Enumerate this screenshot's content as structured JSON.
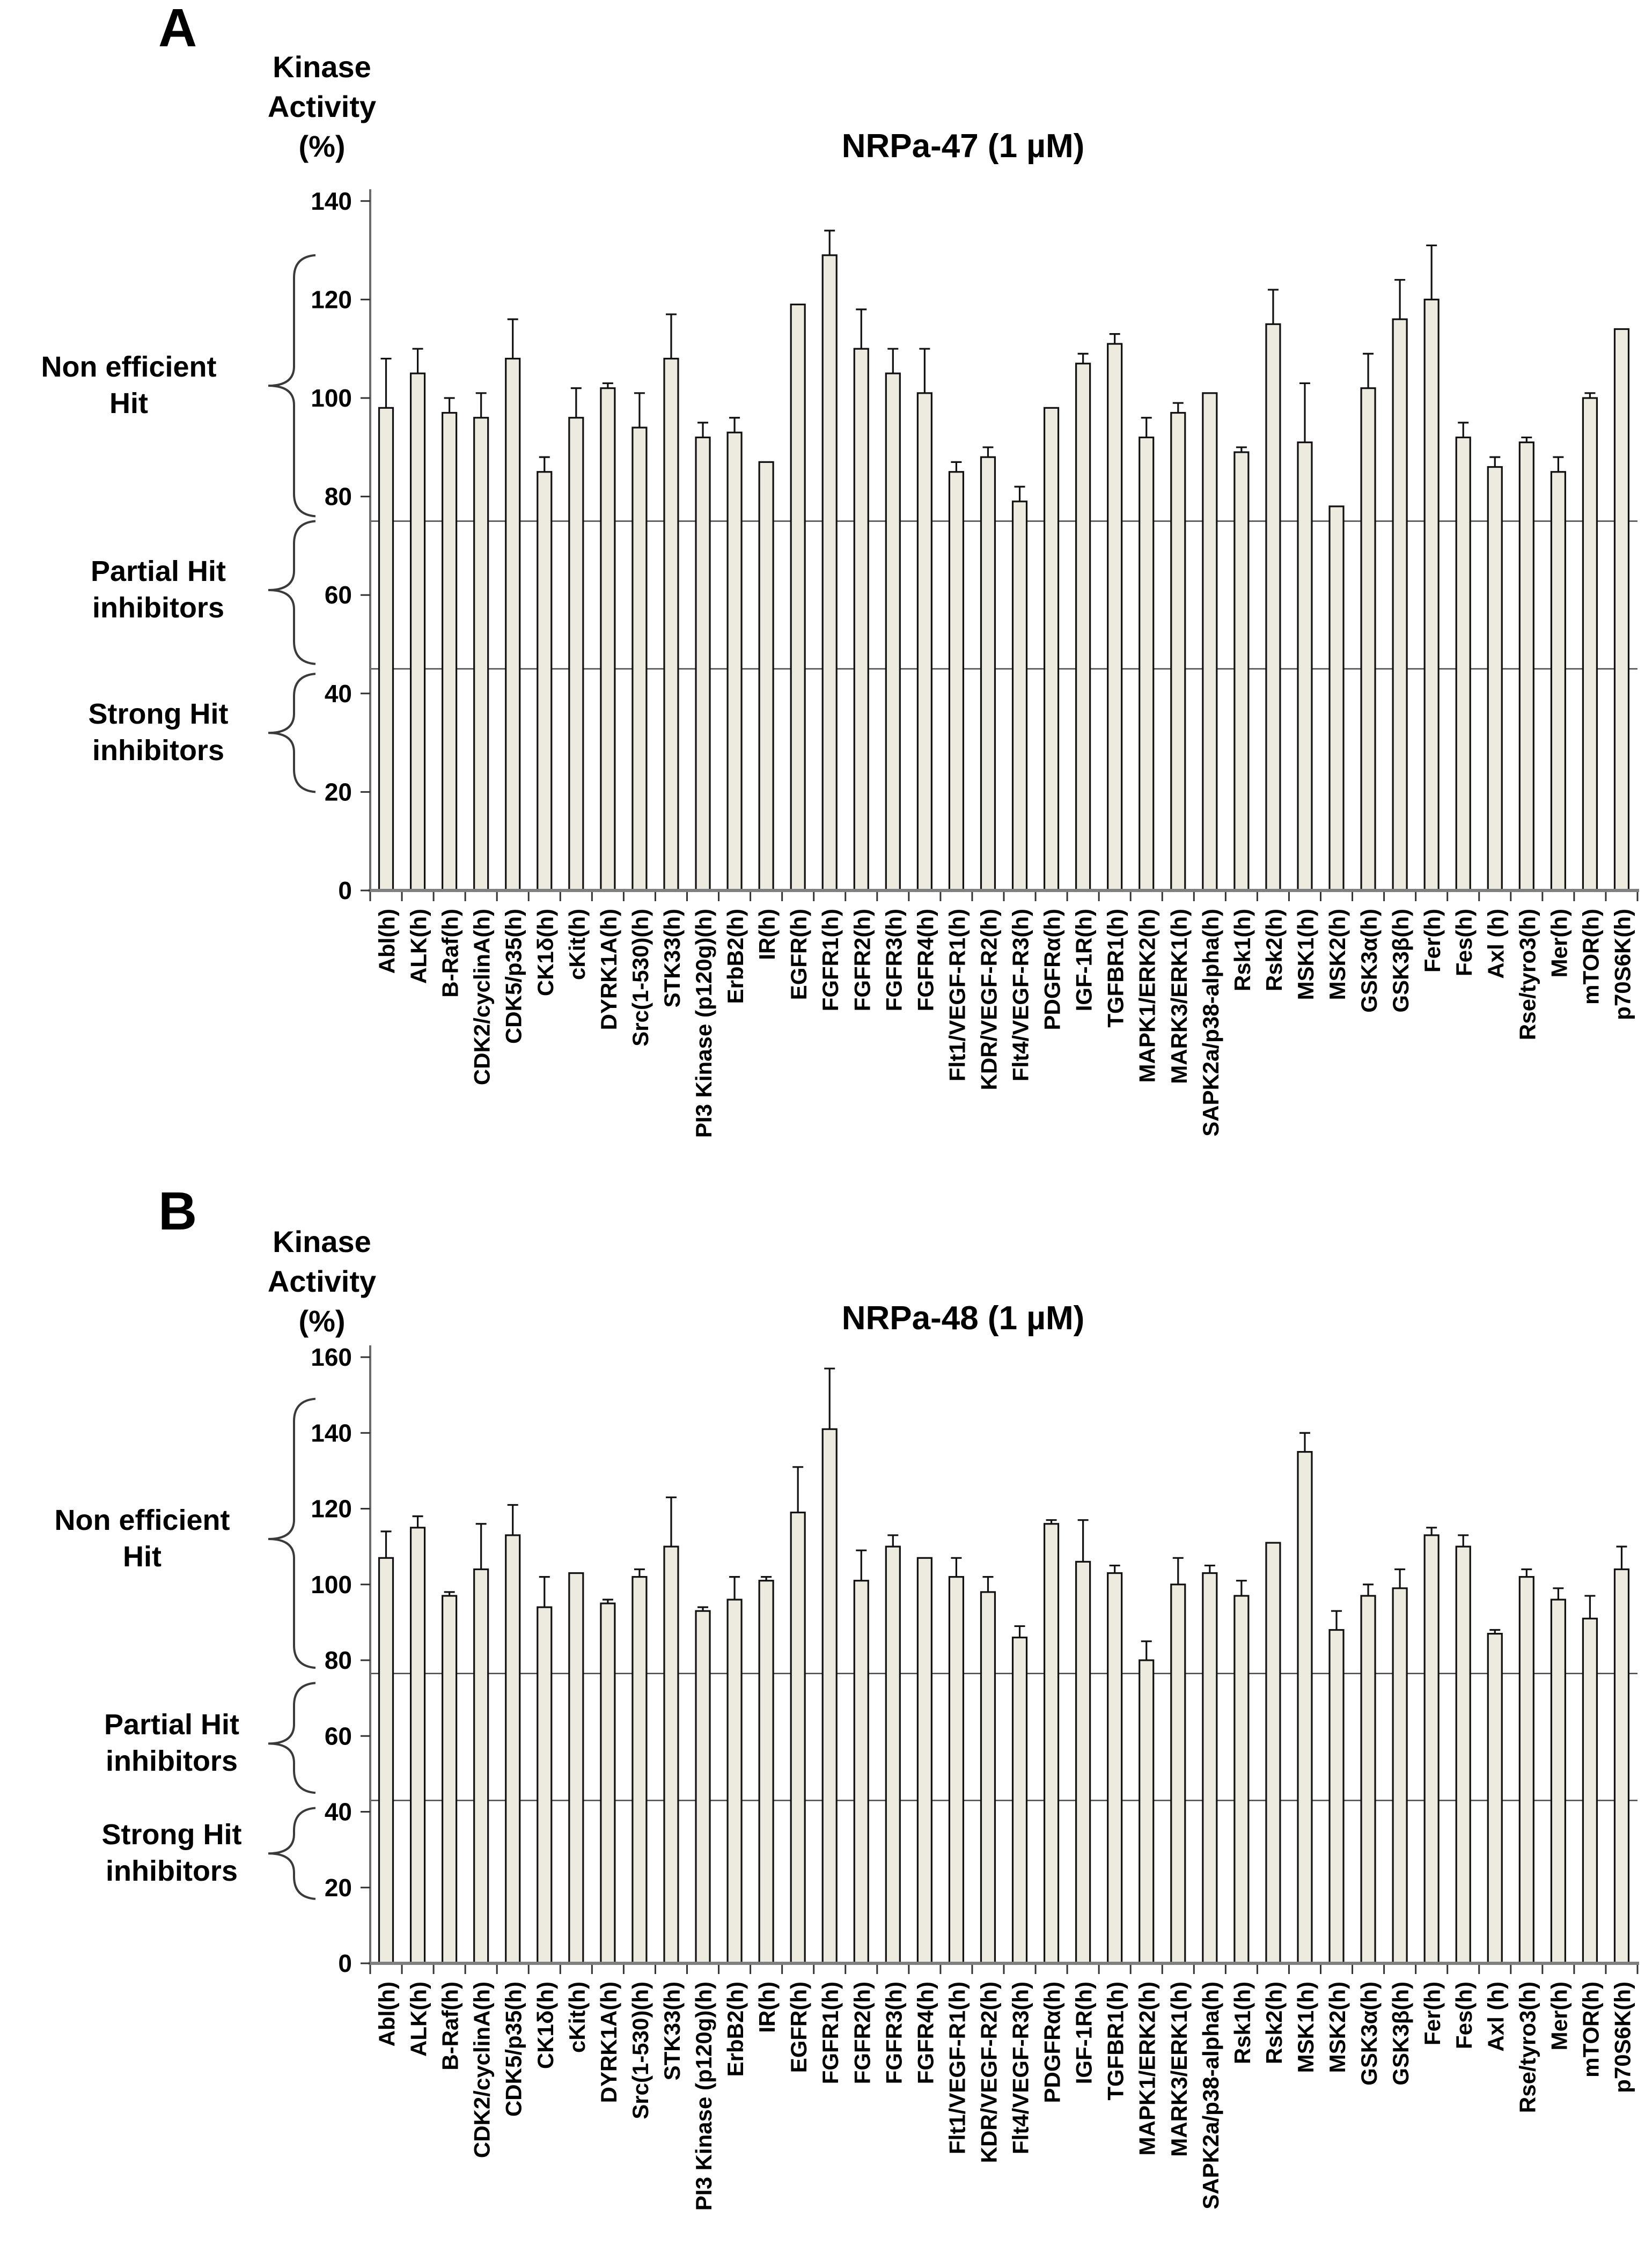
{
  "figure": {
    "panel_count": 2
  },
  "chart_data": [
    {
      "type": "bar",
      "panel_letter": "A",
      "title": "NRPa-47 (1 µM)",
      "ylabel_lines": [
        "Kinase",
        "Activity",
        "(%)"
      ],
      "ylim": [
        0,
        140
      ],
      "ytick_step": 20,
      "y_ticks": [
        0,
        20,
        40,
        60,
        80,
        100,
        120,
        140
      ],
      "grid": false,
      "legend": "none",
      "bar_color": "#edebdf",
      "bar_outline_color": "#111111",
      "threshold_lines": [
        75,
        45
      ],
      "zone_annotations": [
        {
          "label_lines": [
            "Non efficient",
            "Hit"
          ],
          "from": 129,
          "to": 76,
          "tip": 102.5
        },
        {
          "label_lines": [
            "Partial Hit",
            "inhibitors"
          ],
          "from": 75,
          "to": 46,
          "tip": 61
        },
        {
          "label_lines": [
            "Strong Hit",
            "inhibitors"
          ],
          "from": 44,
          "to": 20,
          "tip": 32
        }
      ],
      "categories": [
        "Abl(h)",
        "ALK(h)",
        "B-Raf(h)",
        "CDK2/cyclinA(h)",
        "CDK5/p35(h)",
        "CK1δ(h)",
        "cKit(h)",
        "DYRK1A(h)",
        "Src(1-530)(h)",
        "STK33(h)",
        "PI3 Kinase (p120g)(h)",
        "ErbB2(h)",
        "IR(h)",
        "EGFR(h)",
        "FGFR1(h)",
        "FGFR2(h)",
        "FGFR3(h)",
        "FGFR4(h)",
        "Flt1/VEGF-R1(h)",
        "KDR/VEGF-R2(h)",
        "Flt4/VEGF-R3(h)",
        "PDGFRα(h)",
        "IGF-1R(h)",
        "TGFBR1(h)",
        "MAPK1/ERK2(h)",
        "MARK3/ERK1(h)",
        "SAPK2a/p38-alpha(h)",
        "Rsk1(h)",
        "Rsk2(h)",
        "MSK1(h)",
        "MSK2(h)",
        "GSK3α(h)",
        "GSK3β(h)",
        "Fer(h)",
        "Fes(h)",
        "Axl (h)",
        "Rse/tyro3(h)",
        "Mer(h)",
        "mTOR(h)",
        "p70S6K(h)"
      ],
      "values": [
        98,
        105,
        97,
        96,
        108,
        85,
        96,
        102,
        94,
        108,
        92,
        93,
        87,
        119,
        129,
        110,
        105,
        101,
        85,
        88,
        79,
        98,
        107,
        111,
        92,
        97,
        101,
        89,
        115,
        91,
        78,
        102,
        116,
        120,
        92,
        86,
        91,
        85,
        100,
        114
      ],
      "errors": [
        10,
        5,
        3,
        5,
        8,
        3,
        6,
        1,
        7,
        9,
        3,
        3,
        0,
        0,
        5,
        8,
        5,
        9,
        2,
        2,
        3,
        0,
        2,
        2,
        4,
        2,
        0,
        1,
        7,
        12,
        0,
        7,
        8,
        11,
        3,
        2,
        1,
        3,
        1,
        0
      ]
    },
    {
      "type": "bar",
      "panel_letter": "B",
      "title": "NRPa-48 (1 µM)",
      "ylabel_lines": [
        "Kinase",
        "Activity",
        "(%)"
      ],
      "ylim": [
        0,
        160
      ],
      "ytick_step": 20,
      "y_ticks": [
        0,
        20,
        40,
        60,
        80,
        100,
        120,
        140,
        160
      ],
      "grid": false,
      "legend": "none",
      "bar_color": "#edebdf",
      "bar_outline_color": "#111111",
      "threshold_lines": [
        76.5,
        43
      ],
      "zone_annotations": [
        {
          "label_lines": [
            "Non efficient",
            "Hit"
          ],
          "from": 149,
          "to": 78,
          "tip": 112
        },
        {
          "label_lines": [
            "Partial Hit",
            "inhibitors"
          ],
          "from": 74,
          "to": 45,
          "tip": 58
        },
        {
          "label_lines": [
            "Strong Hit",
            "inhibitors"
          ],
          "from": 41,
          "to": 17,
          "tip": 29
        }
      ],
      "categories": [
        "Abl(h)",
        "ALK(h)",
        "B-Raf(h)",
        "CDK2/cyclinA(h)",
        "CDK5/p35(h)",
        "CK1δ(h)",
        "cKit(h)",
        "DYRK1A(h)",
        "Src(1-530)(h)",
        "STK33(h)",
        "PI3 Kinase (p120g)(h)",
        "ErbB2(h)",
        "IR(h)",
        "EGFR(h)",
        "FGFR1(h)",
        "FGFR2(h)",
        "FGFR3(h)",
        "FGFR4(h)",
        "Flt1/VEGF-R1(h)",
        "KDR/VEGF-R2(h)",
        "Flt4/VEGF-R3(h)",
        "PDGFRα(h)",
        "IGF-1R(h)",
        "TGFBR1(h)",
        "MAPK1/ERK2(h)",
        "MARK3/ERK1(h)",
        "SAPK2a/p38-alpha(h)",
        "Rsk1(h)",
        "Rsk2(h)",
        "MSK1(h)",
        "MSK2(h)",
        "GSK3α(h)",
        "GSK3β(h)",
        "Fer(h)",
        "Fes(h)",
        "Axl (h)",
        "Rse/tyro3(h)",
        "Mer(h)",
        "mTOR(h)",
        "p70S6K(h)"
      ],
      "values": [
        107,
        115,
        97,
        104,
        113,
        94,
        103,
        95,
        102,
        110,
        93,
        96,
        101,
        119,
        141,
        101,
        110,
        107,
        102,
        98,
        86,
        116,
        106,
        103,
        80,
        100,
        103,
        97,
        111,
        135,
        88,
        97,
        99,
        113,
        110,
        87,
        102,
        96,
        91,
        104
      ],
      "errors": [
        7,
        3,
        1,
        12,
        8,
        8,
        0,
        1,
        2,
        13,
        1,
        6,
        1,
        12,
        16,
        8,
        3,
        0,
        5,
        4,
        3,
        1,
        11,
        2,
        5,
        7,
        2,
        4,
        0,
        5,
        5,
        3,
        5,
        2,
        3,
        1,
        2,
        3,
        6,
        6
      ]
    }
  ]
}
